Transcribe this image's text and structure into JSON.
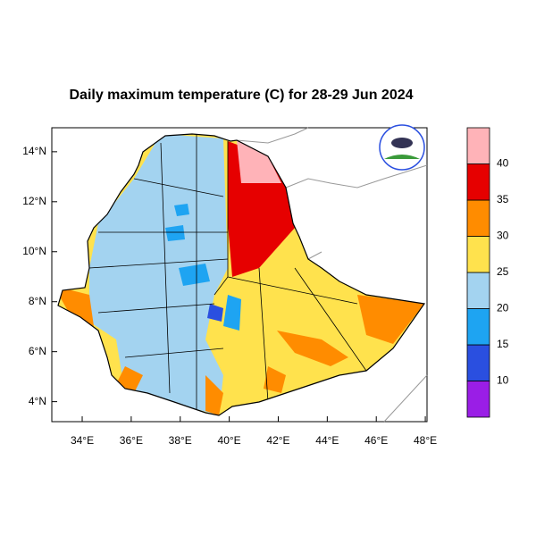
{
  "map": {
    "title": "Daily maximum temperature (C) for 28-29 Jun 2024",
    "xlim": [
      32.76,
      48.07
    ],
    "ylim": [
      3.2,
      14.96
    ],
    "xticks": [
      {
        "value": 34,
        "label": "34°E"
      },
      {
        "value": 36,
        "label": "36°E"
      },
      {
        "value": 38,
        "label": "38°E"
      },
      {
        "value": 40,
        "label": "40°E"
      },
      {
        "value": 42,
        "label": "42°E"
      },
      {
        "value": 44,
        "label": "44°E"
      },
      {
        "value": 46,
        "label": "46°E"
      },
      {
        "value": 48,
        "label": "48°E"
      }
    ],
    "yticks": [
      {
        "value": 4,
        "label": "4°N"
      },
      {
        "value": 6,
        "label": "6°N"
      },
      {
        "value": 8,
        "label": "8°N"
      },
      {
        "value": 10,
        "label": "10°N"
      },
      {
        "value": 12,
        "label": "12°N"
      },
      {
        "value": 14,
        "label": "14°N"
      }
    ],
    "colorbar": {
      "levels": [
        10,
        15,
        20,
        25,
        30,
        35,
        40
      ],
      "colors": [
        "#9a1ee6",
        "#2a4fe0",
        "#1ea4f2",
        "#a3d3f0",
        "#ffe24d",
        "#ff8c00",
        "#e60000",
        "#ffb3b8"
      ]
    }
  }
}
